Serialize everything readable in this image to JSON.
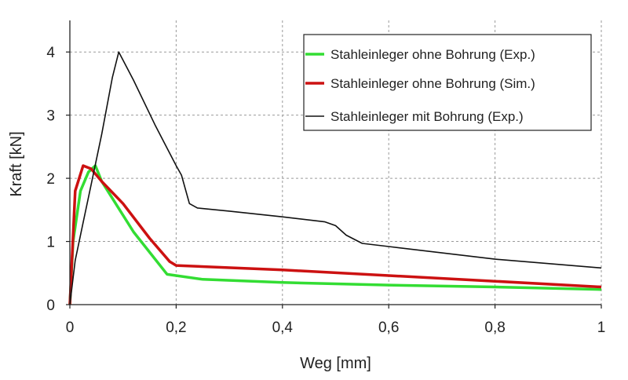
{
  "chart_data": {
    "type": "line",
    "title": "",
    "xlabel": "Weg [mm]",
    "ylabel": "Kraft [kN]",
    "xlim": [
      0,
      1
    ],
    "ylim": [
      0,
      4.5
    ],
    "xticks": [
      0,
      0.2,
      0.4,
      0.6,
      0.8,
      1
    ],
    "xtick_labels": [
      "0",
      "0,2",
      "0,4",
      "0,6",
      "0,8",
      "1"
    ],
    "yticks": [
      0,
      1,
      2,
      3,
      4
    ],
    "ytick_labels": [
      "0",
      "1",
      "2",
      "3",
      "4"
    ],
    "grid": true,
    "legend_position": "top-right",
    "series": [
      {
        "name": "Stahleinleger ohne Bohrung  (Exp.)",
        "color": "#33dd33",
        "x": [
          0,
          0.006,
          0.02,
          0.035,
          0.048,
          0.06,
          0.12,
          0.183,
          0.25,
          0.4,
          0.6,
          0.8,
          1.0
        ],
        "y": [
          0,
          1.0,
          1.8,
          2.1,
          2.2,
          1.95,
          1.15,
          0.48,
          0.4,
          0.35,
          0.31,
          0.28,
          0.24
        ]
      },
      {
        "name": "Stahleinleger ohne Bohrung (Sim.)",
        "color": "#cc1111",
        "x": [
          0,
          0.01,
          0.025,
          0.04,
          0.06,
          0.1,
          0.15,
          0.188,
          0.2,
          0.4,
          0.6,
          0.8,
          1.0
        ],
        "y": [
          0,
          1.8,
          2.2,
          2.15,
          1.95,
          1.6,
          1.05,
          0.68,
          0.62,
          0.55,
          0.46,
          0.37,
          0.28
        ]
      },
      {
        "name": "Stahleinleger mit Bohrung (Exp.)",
        "color": "#111111",
        "x": [
          0,
          0.01,
          0.025,
          0.04,
          0.06,
          0.08,
          0.092,
          0.12,
          0.16,
          0.2,
          0.21,
          0.225,
          0.24,
          0.3,
          0.4,
          0.48,
          0.5,
          0.52,
          0.55,
          0.6,
          0.8,
          1.0
        ],
        "y": [
          0,
          0.7,
          1.3,
          1.9,
          2.7,
          3.6,
          4.0,
          3.55,
          2.85,
          2.2,
          2.05,
          1.6,
          1.53,
          1.48,
          1.39,
          1.31,
          1.25,
          1.1,
          0.97,
          0.92,
          0.72,
          0.58
        ]
      }
    ]
  }
}
